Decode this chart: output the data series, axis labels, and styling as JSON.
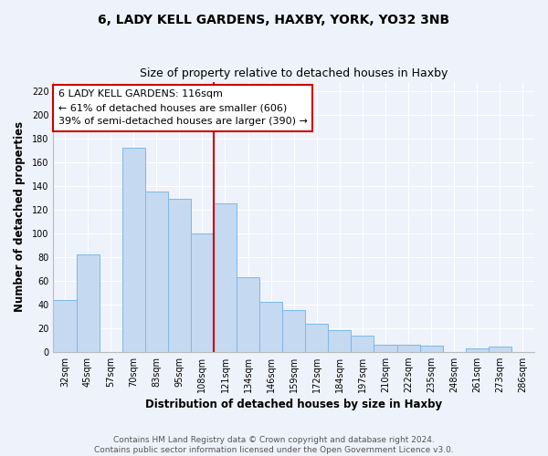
{
  "title": "6, LADY KELL GARDENS, HAXBY, YORK, YO32 3NB",
  "subtitle": "Size of property relative to detached houses in Haxby",
  "xlabel": "Distribution of detached houses by size in Haxby",
  "ylabel": "Number of detached properties",
  "bin_labels": [
    "32sqm",
    "45sqm",
    "57sqm",
    "70sqm",
    "83sqm",
    "95sqm",
    "108sqm",
    "121sqm",
    "134sqm",
    "146sqm",
    "159sqm",
    "172sqm",
    "184sqm",
    "197sqm",
    "210sqm",
    "222sqm",
    "235sqm",
    "248sqm",
    "261sqm",
    "273sqm",
    "286sqm"
  ],
  "bar_heights": [
    44,
    82,
    0,
    172,
    135,
    129,
    100,
    125,
    63,
    42,
    35,
    24,
    18,
    14,
    6,
    6,
    5,
    0,
    3,
    4,
    0
  ],
  "bar_color": "#c5d9f0",
  "bar_edge_color": "#7db8e8",
  "vline_color": "#cc0000",
  "vline_x_index": 7,
  "annotation_text": "6 LADY KELL GARDENS: 116sqm\n← 61% of detached houses are smaller (606)\n39% of semi-detached houses are larger (390) →",
  "annotation_box_color": "#ffffff",
  "annotation_box_edge": "#cc0000",
  "ylim": [
    0,
    228
  ],
  "yticks": [
    0,
    20,
    40,
    60,
    80,
    100,
    120,
    140,
    160,
    180,
    200,
    220
  ],
  "footer_text": "Contains HM Land Registry data © Crown copyright and database right 2024.\nContains public sector information licensed under the Open Government Licence v3.0.",
  "bg_color": "#eef2fb",
  "grid_color": "#ffffff",
  "title_fontsize": 10,
  "subtitle_fontsize": 9,
  "axis_label_fontsize": 8.5,
  "tick_fontsize": 7,
  "footer_fontsize": 6.5,
  "annotation_fontsize": 8
}
